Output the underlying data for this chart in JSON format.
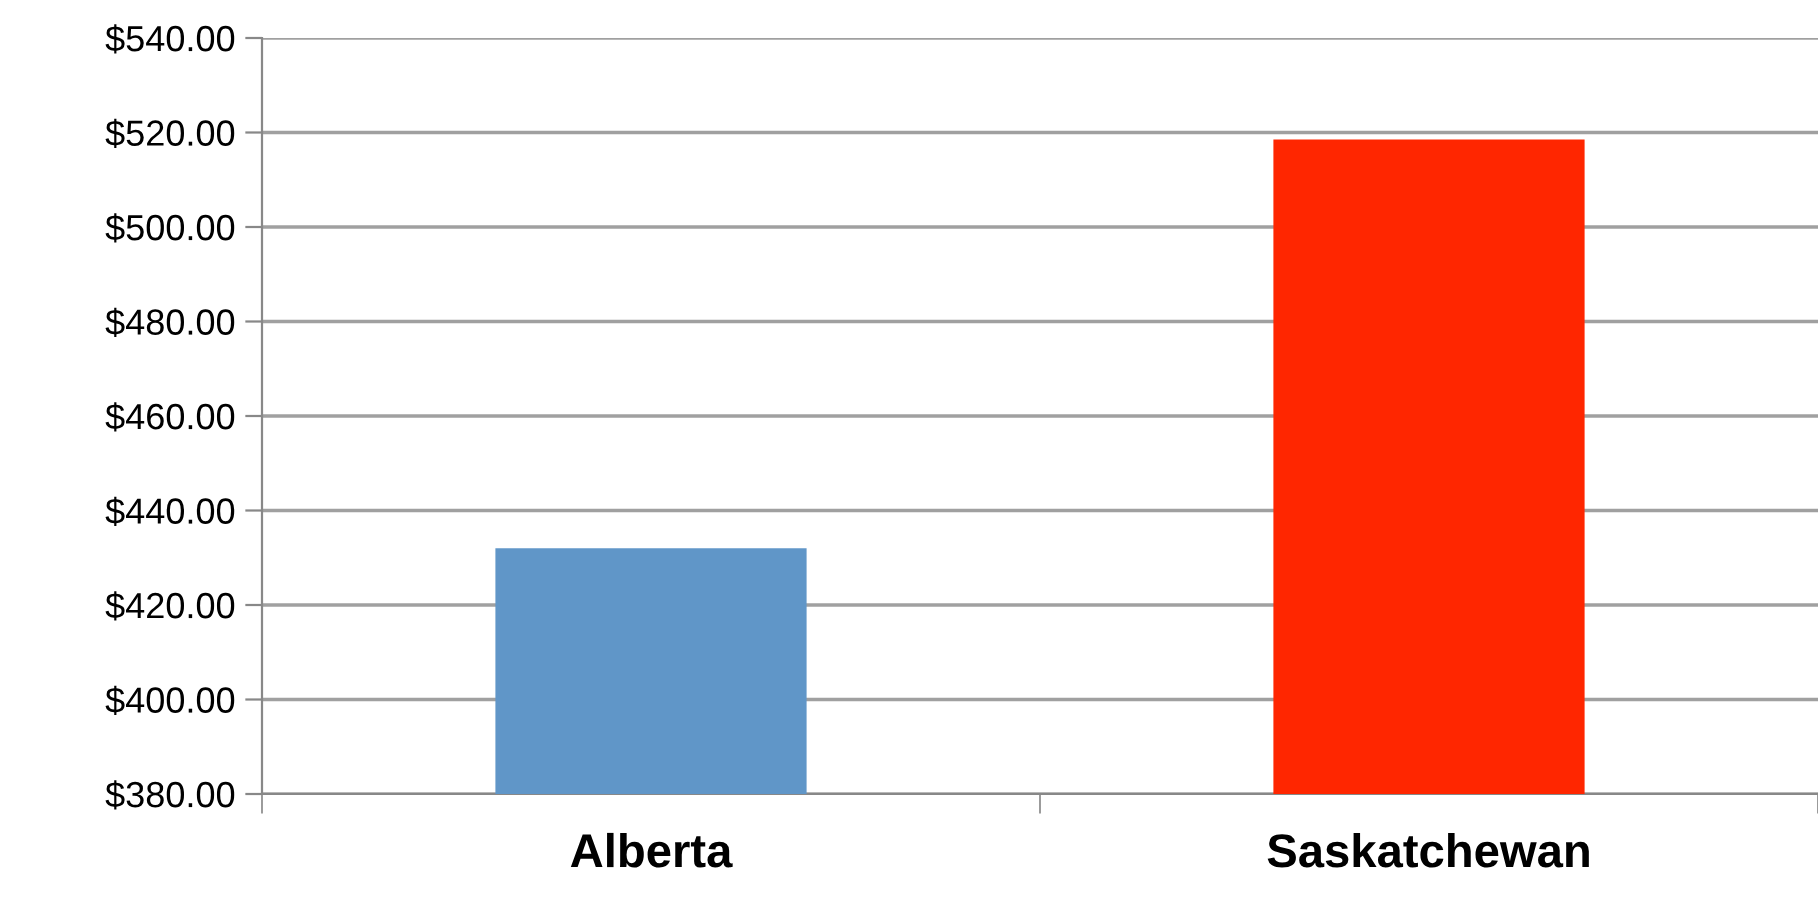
{
  "chart_data": {
    "type": "bar",
    "categories": [
      "Alberta",
      "Saskatchewan"
    ],
    "values": [
      432,
      518.5
    ],
    "colors": [
      "#6096c8",
      "#ff2600"
    ],
    "ylim": [
      380,
      540
    ],
    "yticks": [
      {
        "value": 380,
        "label": "$380.00"
      },
      {
        "value": 400,
        "label": "$400.00"
      },
      {
        "value": 420,
        "label": "$420.00"
      },
      {
        "value": 440,
        "label": "$440.00"
      },
      {
        "value": 460,
        "label": "$460.00"
      },
      {
        "value": 480,
        "label": "$480.00"
      },
      {
        "value": 500,
        "label": "$500.00"
      },
      {
        "value": 520,
        "label": "$520.00"
      },
      {
        "value": 540,
        "label": "$540.00"
      }
    ],
    "grid": "y"
  }
}
